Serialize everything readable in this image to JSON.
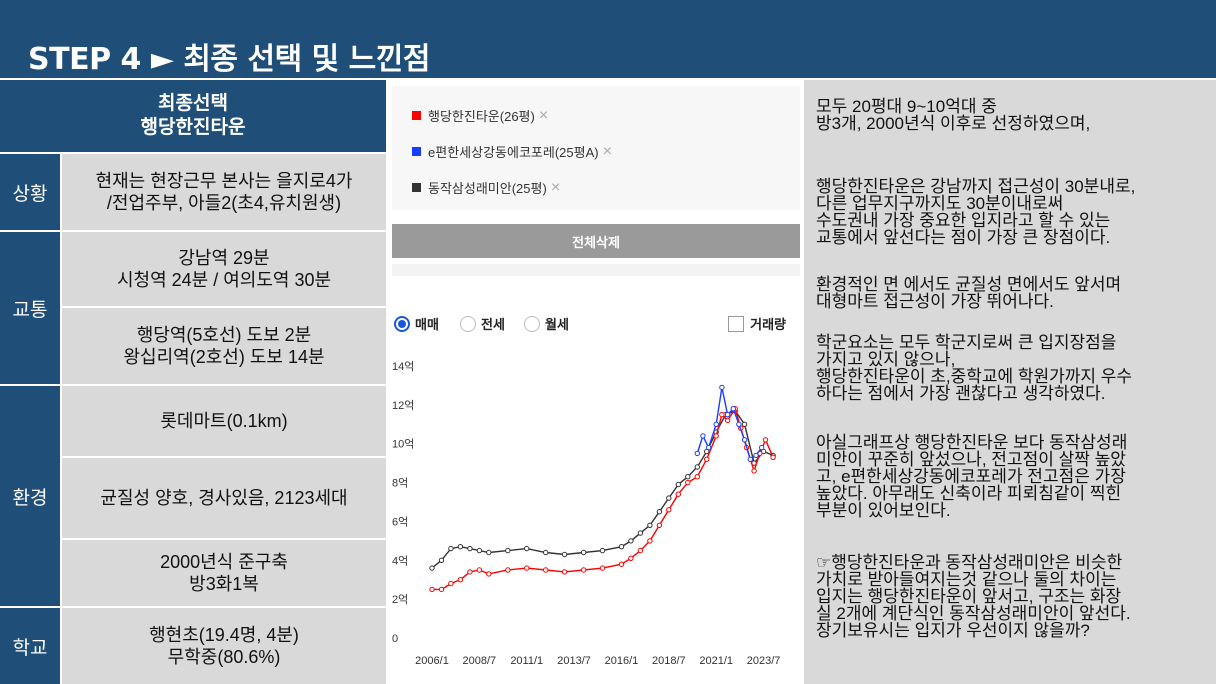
{
  "title": "STEP 4 ► 최종 선택 및 느낀점",
  "final": {
    "line1": "최종선택",
    "line2": "행당한진타운"
  },
  "rows": [
    {
      "category": "상황",
      "cells": [
        {
          "lines": [
            "현재는 현장근무 본사는 을지로4가",
            "/전업주부, 아들2(초4,유치원생)"
          ]
        }
      ]
    },
    {
      "category": "교통",
      "cells": [
        {
          "lines": [
            "강남역 29분",
            "시청역 24분 / 여의도역 30분"
          ]
        },
        {
          "lines": [
            "행당역(5호선) 도보 2분",
            "왕십리역(2호선) 도보 14분"
          ]
        }
      ]
    },
    {
      "category": "환경",
      "cells": [
        {
          "lines": [
            "롯데마트(0.1km)"
          ]
        },
        {
          "lines": [
            "균질성 양호, 경사있음, 2123세대"
          ]
        },
        {
          "lines": [
            "2000년식 준구축",
            "방3화1복"
          ]
        }
      ]
    },
    {
      "category": "학교",
      "cells": [
        {
          "lines": [
            "행현초(19.4명, 4분)",
            "무학중(80.6%)"
          ]
        }
      ]
    }
  ],
  "legend": [
    {
      "label": "행당한진타운(26평)",
      "color": "#ff0000"
    },
    {
      "label": "e편한세상강동에코포레(25평A)",
      "color": "#1a3cff"
    },
    {
      "label": "동작삼성래미안(25평)",
      "color": "#333333"
    }
  ],
  "remove_icon": "close-icon",
  "delete_all_label": "전체삭제",
  "trade_types": {
    "options": [
      "매매",
      "전세",
      "월세"
    ],
    "selected": "매매"
  },
  "volume_label": "거래량",
  "chart_data": {
    "type": "line",
    "ylabel_ticks": [
      "0",
      "2억",
      "4억",
      "6억",
      "8억",
      "10억",
      "12억",
      "14억"
    ],
    "ylim": [
      0,
      14
    ],
    "x_ticks": [
      "2006/1",
      "2008/7",
      "2011/1",
      "2013/7",
      "2016/1",
      "2018/7",
      "2021/1",
      "2023/7"
    ],
    "x_tick_values": [
      2006.0,
      2008.5,
      2011.0,
      2013.5,
      2016.0,
      2018.5,
      2021.0,
      2023.5
    ],
    "xlim": [
      2006.0,
      2025.0
    ],
    "series": [
      {
        "name": "동작삼성래미안(25평)",
        "color": "#333333",
        "x": [
          2006.0,
          2006.5,
          2007.0,
          2007.5,
          2008.0,
          2008.5,
          2009.0,
          2010.0,
          2011.0,
          2012.0,
          2013.0,
          2014.0,
          2015.0,
          2016.0,
          2016.5,
          2017.0,
          2017.5,
          2018.0,
          2018.5,
          2019.0,
          2019.5,
          2020.0,
          2020.5,
          2021.0,
          2021.5,
          2022.0,
          2022.5,
          2023.0,
          2023.5,
          2024.0
        ],
        "y": [
          3.6,
          4.0,
          4.6,
          4.7,
          4.6,
          4.5,
          4.4,
          4.5,
          4.6,
          4.4,
          4.3,
          4.4,
          4.5,
          4.7,
          5.0,
          5.4,
          5.8,
          6.5,
          7.2,
          7.9,
          8.3,
          8.8,
          9.6,
          10.6,
          11.5,
          11.7,
          11.0,
          9.0,
          9.6,
          9.4
        ]
      },
      {
        "name": "행당한진타운(26평)",
        "color": "#ff0000",
        "x": [
          2006.0,
          2006.5,
          2007.0,
          2007.5,
          2008.0,
          2008.5,
          2009.0,
          2010.0,
          2011.0,
          2012.0,
          2013.0,
          2014.0,
          2015.0,
          2016.0,
          2016.5,
          2017.0,
          2017.5,
          2018.0,
          2018.5,
          2019.0,
          2019.5,
          2020.0,
          2020.5,
          2021.0,
          2021.3,
          2021.6,
          2022.0,
          2022.3,
          2022.6,
          2023.0,
          2023.3,
          2023.6,
          2024.0
        ],
        "y": [
          2.5,
          2.5,
          2.8,
          3.0,
          3.4,
          3.5,
          3.3,
          3.5,
          3.6,
          3.5,
          3.4,
          3.5,
          3.6,
          3.8,
          4.1,
          4.5,
          5.0,
          5.8,
          6.6,
          7.4,
          8.0,
          8.3,
          9.2,
          10.4,
          11.5,
          11.2,
          11.8,
          10.8,
          9.8,
          8.6,
          9.5,
          10.2,
          9.3
        ]
      },
      {
        "name": "e편한세상강동에코포레(25평A)",
        "color": "#1a3cff",
        "x": [
          2020.0,
          2020.3,
          2020.6,
          2021.0,
          2021.3,
          2021.6,
          2021.9,
          2022.2,
          2022.5,
          2022.8,
          2023.1,
          2023.4
        ],
        "y": [
          9.5,
          10.4,
          9.8,
          11.0,
          12.9,
          11.5,
          11.8,
          11.0,
          10.2,
          9.2,
          9.4,
          9.8
        ]
      }
    ]
  },
  "paragraphs": [
    [
      "모두 20평대 9~10억대 중",
      "방3개, 2000년식 이후로 선정하였으며,"
    ],
    [
      "행당한진타운은 강남까지 접근성이 30분내로,",
      "다른 업무지구까지도 30분이내로써",
      "수도권내 가장 중요한 입지라고 할 수 있는",
      "교통에서 앞선다는 점이 가장 큰 장점이다."
    ],
    [
      "환경적인 면 에서도 균질성 면에서도 앞서며",
      "대형마트 접근성이 가장 뛰어나다."
    ],
    [
      "학군요소는 모두 학군지로써 큰 입지장점을",
      "가지고 있지 않으나,",
      "행당한진타운이 초,중학교에 학원가까지 우수",
      "하다는 점에서 가장 괜찮다고 생각하였다."
    ],
    [
      "아실그래프상 행당한진타운 보다 동작삼성래",
      "미안이 꾸준히 앞섰으나, 전고점이 살짝 높았",
      "고, e편한세상강동에코포레가 전고점은 가장",
      "높았다. 아무래도 신축이라 피뢰침같이 찍힌",
      "부분이 있어보인다."
    ],
    [
      "☞행당한진타운과 동작삼성래미안은 비슷한",
      "가치로 받아들여지는것 같으나 둘의 차이는",
      "입지는 행당한진타운이 앞서고, 구조는 화장",
      "실 2개에 계단식인 동작삼성래미안이 앞선다.",
      "장기보유시는 입지가 우선이지 않을까?"
    ]
  ]
}
